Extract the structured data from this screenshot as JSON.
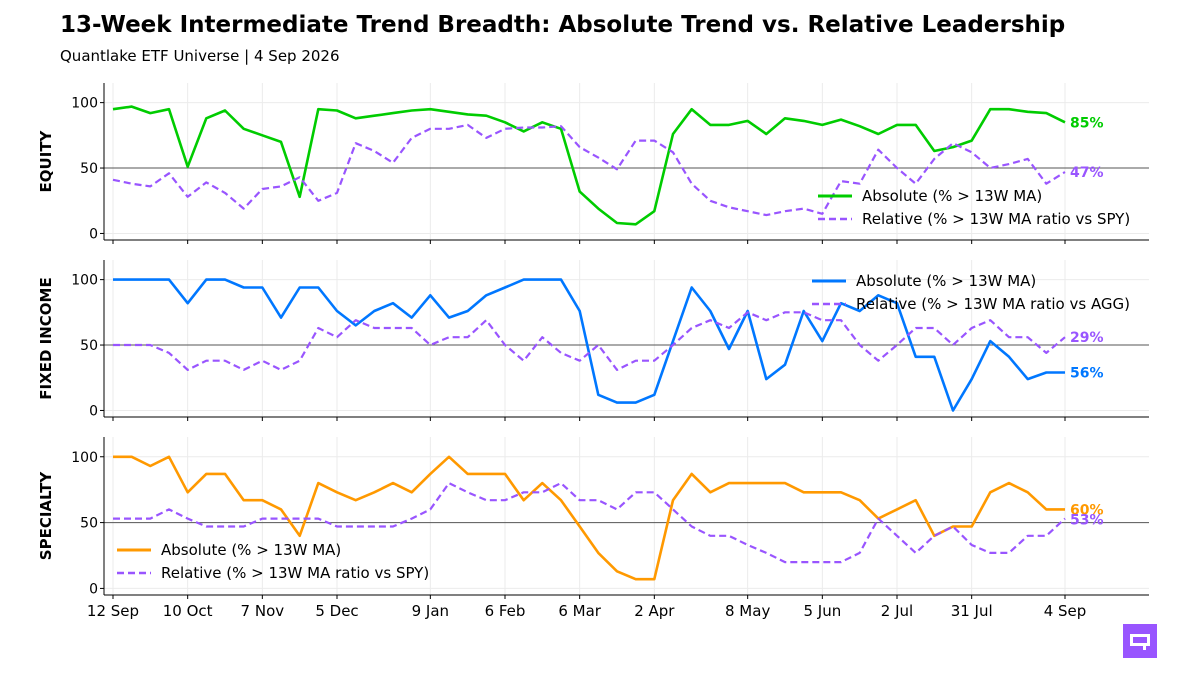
{
  "title": "13-Week Intermediate Trend Breadth: Absolute Trend vs. Relative Leadership",
  "subtitle": "Quantlake ETF Universe  |  4 Sep 2026",
  "colors": {
    "equity_abs": "#00cc00",
    "fi_abs": "#0077ff",
    "spec_abs": "#ff9900",
    "relative": "#9955ff",
    "ref_line": "#555555",
    "logo": "#9955ff"
  },
  "logo_icon": "quantlake-logo-icon",
  "chart_data": {
    "type": "line",
    "x": [
      "12 Sep",
      "19 Sep",
      "26 Sep",
      "3 Oct",
      "10 Oct",
      "17 Oct",
      "24 Oct",
      "31 Oct",
      "7 Nov",
      "14 Nov",
      "21 Nov",
      "28 Nov",
      "5 Dec",
      "12 Dec",
      "19 Dec",
      "26 Dec",
      "2 Jan",
      "9 Jan",
      "16 Jan",
      "23 Jan",
      "30 Jan",
      "6 Feb",
      "13 Feb",
      "20 Feb",
      "27 Feb",
      "6 Mar",
      "13 Mar",
      "20 Mar",
      "27 Mar",
      "2 Apr",
      "9 Apr",
      "16 Apr",
      "23 Apr",
      "30 Apr",
      "8 May",
      "15 May",
      "22 May",
      "29 May",
      "5 Jun",
      "12 Jun",
      "19 Jun",
      "26 Jun",
      "2 Jul",
      "9 Jul",
      "16 Jul",
      "23 Jul",
      "31 Jul",
      "7 Aug",
      "14 Aug",
      "21 Aug",
      "28 Aug",
      "4 Sep"
    ],
    "xticks": [
      "12 Sep",
      "10 Oct",
      "7 Nov",
      "5 Dec",
      "9 Jan",
      "6 Feb",
      "6 Mar",
      "2 Apr",
      "8 May",
      "5 Jun",
      "2 Jul",
      "31 Jul",
      "4 Sep"
    ],
    "ylim": [
      -5,
      115
    ],
    "yticks": [
      0,
      50,
      100
    ],
    "reference_line": 50,
    "panels": [
      {
        "ylabel": "EQUITY",
        "legend_position": "lower-right",
        "series": [
          {
            "name": "Absolute (% > 13W MA)",
            "style": "solid",
            "values": [
              95,
              97,
              92,
              95,
              51,
              88,
              94,
              80,
              75,
              70,
              28,
              95,
              94,
              88,
              90,
              92,
              94,
              95,
              93,
              91,
              90,
              85,
              78,
              85,
              80,
              32,
              19,
              8,
              7,
              17,
              76,
              95,
              83,
              83,
              86,
              76,
              88,
              86,
              83,
              87,
              82,
              76,
              83,
              83,
              63,
              66,
              71,
              95,
              95,
              93,
              92,
              85
            ]
          },
          {
            "name": "Relative (% > 13W MA ratio vs SPY)",
            "style": "dashed",
            "values": [
              41,
              38,
              36,
              46,
              28,
              39,
              31,
              19,
              34,
              36,
              43,
              25,
              31,
              69,
              63,
              54,
              73,
              80,
              80,
              83,
              73,
              80,
              81,
              81,
              82,
              66,
              58,
              49,
              71,
              71,
              62,
              38,
              25,
              20,
              17,
              14,
              17,
              19,
              15,
              40,
              38,
              64,
              50,
              38,
              57,
              69,
              62,
              50,
              53,
              57,
              38,
              47
            ]
          }
        ],
        "end_labels": [
          "85%",
          "47%"
        ]
      },
      {
        "ylabel": "FIXED INCOME",
        "legend_position": "upper-right",
        "series": [
          {
            "name": "Absolute (% > 13W MA)",
            "style": "solid",
            "values": [
              100,
              100,
              100,
              100,
              82,
              100,
              100,
              94,
              94,
              71,
              94,
              94,
              76,
              65,
              76,
              82,
              71,
              88,
              71,
              76,
              88,
              94,
              100,
              100,
              100,
              76,
              12,
              6,
              6,
              12,
              53,
              94,
              76,
              47,
              76,
              24,
              35,
              76,
              53,
              82,
              76,
              88,
              82,
              41,
              41,
              0,
              24,
              53,
              41,
              24,
              29,
              29
            ]
          },
          {
            "name": "Relative (% > 13W MA ratio vs AGG)",
            "style": "dashed",
            "values": [
              50,
              50,
              50,
              44,
              31,
              38,
              38,
              31,
              38,
              31,
              38,
              63,
              56,
              69,
              63,
              63,
              63,
              50,
              56,
              56,
              69,
              50,
              38,
              56,
              44,
              38,
              50,
              31,
              38,
              38,
              50,
              63,
              69,
              63,
              75,
              69,
              75,
              75,
              69,
              69,
              50,
              38,
              50,
              63,
              63,
              50,
              63,
              69,
              56,
              56,
              44,
              56
            ]
          }
        ],
        "end_labels": [
          "56%",
          "29%"
        ]
      },
      {
        "ylabel": "SPECIALTY",
        "legend_position": "lower-left",
        "series": [
          {
            "name": "Absolute (% > 13W MA)",
            "style": "solid",
            "values": [
              100,
              100,
              93,
              100,
              73,
              87,
              87,
              67,
              67,
              60,
              40,
              80,
              73,
              67,
              73,
              80,
              73,
              87,
              100,
              87,
              87,
              87,
              67,
              80,
              67,
              47,
              27,
              13,
              7,
              7,
              67,
              87,
              73,
              80,
              80,
              80,
              80,
              73,
              73,
              73,
              67,
              53,
              60,
              67,
              40,
              47,
              47,
              73,
              80,
              73,
              60,
              60
            ]
          },
          {
            "name": "Relative (% > 13W MA ratio vs SPY)",
            "style": "dashed",
            "values": [
              53,
              53,
              53,
              60,
              53,
              47,
              47,
              47,
              53,
              53,
              53,
              53,
              47,
              47,
              47,
              47,
              53,
              60,
              80,
              73,
              67,
              67,
              73,
              73,
              80,
              67,
              67,
              60,
              73,
              73,
              60,
              47,
              40,
              40,
              33,
              27,
              20,
              20,
              20,
              20,
              27,
              53,
              40,
              27,
              40,
              47,
              33,
              27,
              27,
              40,
              40,
              53
            ]
          }
        ],
        "end_labels": [
          "60%",
          "53%"
        ]
      }
    ]
  }
}
